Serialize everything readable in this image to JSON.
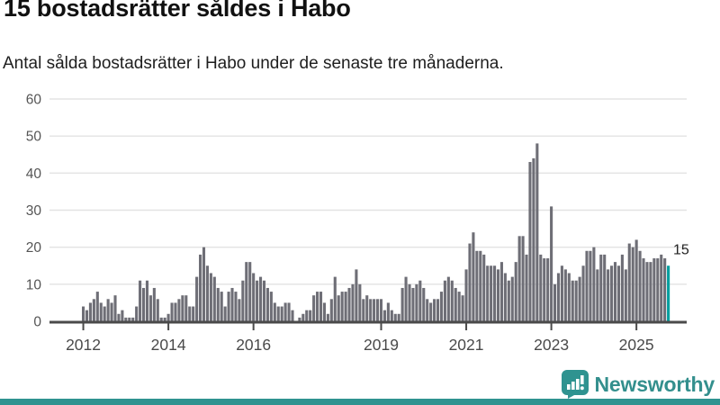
{
  "chart_data": {
    "type": "bar",
    "title": "15 bostadsrätter såldes i Habo",
    "subtitle": "Antal sålda bostadsrätter i Habo under de senaste tre månaderna.",
    "x_start": "2012-01",
    "x_frequency": "monthly",
    "values": [
      4,
      3,
      5,
      6,
      8,
      5,
      4,
      6,
      5,
      7,
      2,
      3,
      1,
      1,
      1,
      4,
      11,
      9,
      11,
      7,
      9,
      6,
      1,
      1,
      2,
      5,
      5,
      6,
      7,
      7,
      4,
      4,
      12,
      18,
      20,
      15,
      13,
      12,
      9,
      8,
      4,
      8,
      9,
      8,
      6,
      11,
      16,
      16,
      13,
      11,
      12,
      11,
      9,
      8,
      5,
      4,
      4,
      5,
      5,
      3,
      0,
      1,
      2,
      3,
      3,
      7,
      8,
      8,
      5,
      2,
      6,
      12,
      7,
      8,
      8,
      9,
      10,
      14,
      10,
      6,
      7,
      6,
      6,
      6,
      6,
      3,
      5,
      3,
      2,
      2,
      9,
      12,
      10,
      9,
      10,
      11,
      9,
      6,
      5,
      6,
      6,
      8,
      11,
      12,
      11,
      9,
      8,
      7,
      14,
      21,
      24,
      19,
      19,
      18,
      15,
      15,
      15,
      14,
      16,
      13,
      11,
      12,
      16,
      23,
      23,
      18,
      43,
      44,
      48,
      18,
      17,
      17,
      31,
      10,
      13,
      15,
      14,
      13,
      11,
      11,
      12,
      15,
      19,
      19,
      20,
      14,
      18,
      18,
      14,
      15,
      16,
      15,
      18,
      14,
      21,
      20,
      22,
      19,
      17,
      16,
      16,
      17,
      17,
      18,
      17,
      15
    ],
    "highlight_last_value": 15,
    "annotation_label": "15",
    "xticks": [
      "2012",
      "2014",
      "2016",
      "2019",
      "2021",
      "2023",
      "2025"
    ],
    "xtick_years": [
      2012,
      2014,
      2016,
      2019,
      2021,
      2023,
      2025
    ],
    "yticks": [
      0,
      10,
      20,
      30,
      40,
      50,
      60
    ],
    "ylim": [
      0,
      60
    ],
    "grid": "horizontal",
    "legend": false
  },
  "branding": {
    "name": "Newsworthy"
  },
  "colors": {
    "bar": "#6e6e76",
    "highlight": "#009f9f",
    "accent": "#2f9390",
    "grid": "#e3e3e3",
    "axis": "#4a4a4a",
    "ytick_label": "#555555",
    "xtick_label": "#4a4a4a",
    "annotation": "#222222"
  }
}
